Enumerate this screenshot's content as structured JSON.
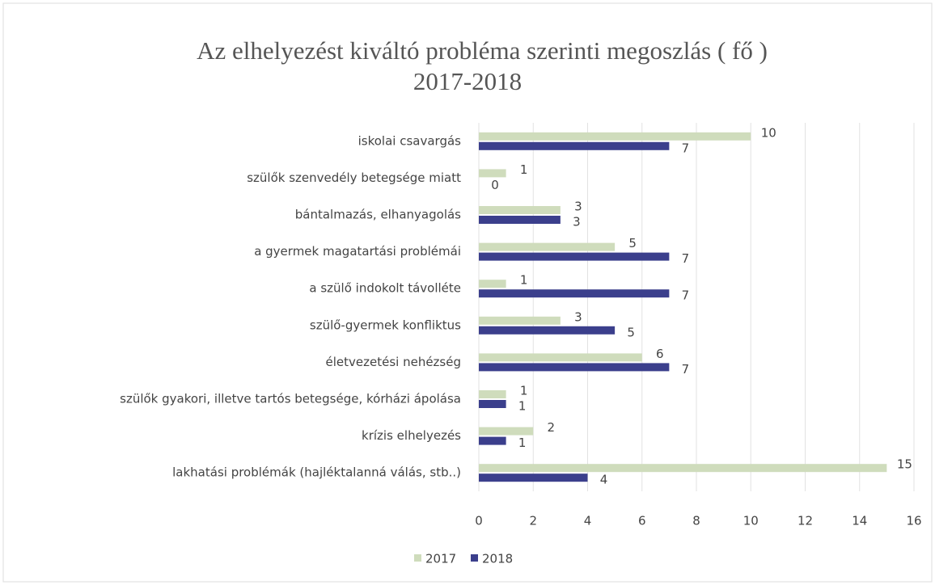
{
  "chart_data": {
    "type": "barh",
    "title": "Az elhelyezést kiváltó probléma szerinti megoszlás ( fő )",
    "subtitle": "2017-2018",
    "categories": [
      "iskolai csavargás",
      "szülők szenvedély betegsége miatt",
      "bántalmazás, elhanyagolás",
      "a gyermek magatartási problémái",
      "a szülő indokolt távolléte",
      "szülő-gyermek konfliktus",
      "életvezetési nehézség",
      "szülők gyakori, illetve tartós betegsége, kórházi ápolása",
      "krízis elhelyezés",
      "lakhatási problémák (hajléktalanná válás, stb..)"
    ],
    "series": [
      {
        "name": "2017",
        "color": "#cfdcbc",
        "values": [
          10,
          1,
          3,
          5,
          1,
          3,
          6,
          1,
          2,
          15
        ]
      },
      {
        "name": "2018",
        "color": "#3b3f8c",
        "values": [
          7,
          0,
          3,
          7,
          7,
          5,
          7,
          1,
          1,
          4
        ]
      }
    ],
    "xlim": [
      0,
      16
    ],
    "xticks": [
      0,
      2,
      4,
      6,
      8,
      10,
      12,
      14,
      16
    ],
    "grid": true,
    "legend": "bottom"
  }
}
